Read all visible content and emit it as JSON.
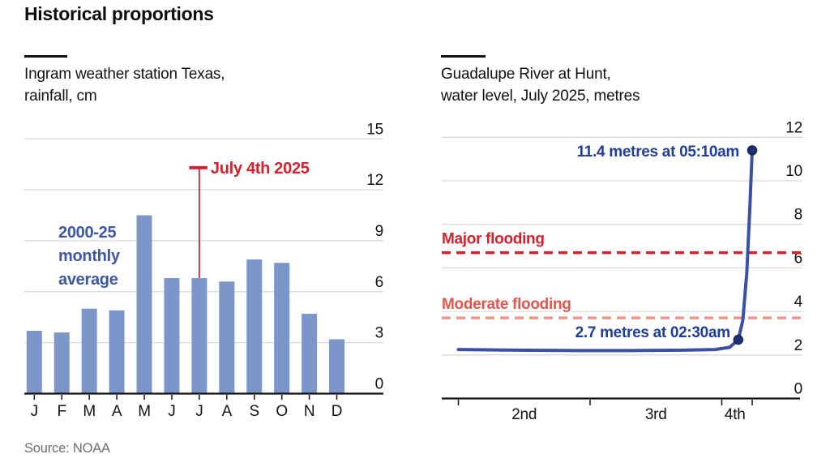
{
  "title": "Historical proportions",
  "source": "Source: NOAA",
  "colors": {
    "bar_blue": "#7d96ca",
    "line_blue": "#3a50a4",
    "dot_navy": "#202f6d",
    "navy_text": "#1f3d99",
    "series_label_blue": "#3d56a6",
    "red": "#d0232e",
    "salmon_line": "#ee948b",
    "salmon_text": "#e2564b",
    "grid_gray": "#d9d9d9",
    "axis_dark": "#121212",
    "source_gray": "#6e6e6e"
  },
  "chart_data": [
    {
      "type": "bar",
      "subtitle": "Ingram weather station Texas,\nrainfall, cm",
      "categories": [
        "J",
        "F",
        "M",
        "A",
        "M",
        "J",
        "J",
        "A",
        "S",
        "O",
        "N",
        "D"
      ],
      "values": [
        3.7,
        3.6,
        5.0,
        4.9,
        10.5,
        6.8,
        6.8,
        6.6,
        7.9,
        7.7,
        4.7,
        3.2
      ],
      "series_label": "2000-25\nmonthly\naverage",
      "annotation": {
        "label": "July 4th 2025",
        "value": 13.3,
        "category_index": 6
      },
      "ylabel": "rainfall, cm",
      "ylim": [
        0,
        15
      ],
      "yticks": [
        0,
        3,
        6,
        9,
        12,
        15
      ],
      "grid": "on",
      "tick_labels_position": "right"
    },
    {
      "type": "line",
      "subtitle": "Guadalupe River at Hunt,\nwater level, July 2025, metres",
      "ylabel": "water level, metres",
      "x_days": [
        2.0,
        2.45,
        2.9,
        3.3,
        3.7,
        3.95,
        4.06,
        4.125,
        4.16,
        4.19,
        4.215,
        4.231
      ],
      "y_metres": [
        2.25,
        2.22,
        2.2,
        2.2,
        2.22,
        2.25,
        2.35,
        2.7,
        3.6,
        5.8,
        9.0,
        11.4
      ],
      "points": [
        {
          "label": "11.4 metres at 05:10am",
          "day": 4.231,
          "value": 11.4
        },
        {
          "label": "2.7 metres at 02:30am",
          "day": 4.125,
          "value": 2.7
        }
      ],
      "thresholds": [
        {
          "label": "Major flooding",
          "value": 6.7,
          "line_color": "#d0232e",
          "label_color": "#d0232e"
        },
        {
          "label": "Moderate flooding",
          "value": 3.7,
          "line_color": "#ee948b",
          "label_color": "#e2564b"
        }
      ],
      "xtick_days": [
        2,
        3,
        4,
        4.231
      ],
      "xtick_labels": [
        {
          "label": "2nd",
          "day": 2.5
        },
        {
          "label": "3rd",
          "day": 3.5
        },
        {
          "label": "4th",
          "day": 4.1
        }
      ],
      "ylim": [
        0,
        12
      ],
      "yticks": [
        0,
        2,
        4,
        6,
        8,
        10,
        12
      ],
      "grid": "on",
      "tick_labels_position": "right"
    }
  ]
}
